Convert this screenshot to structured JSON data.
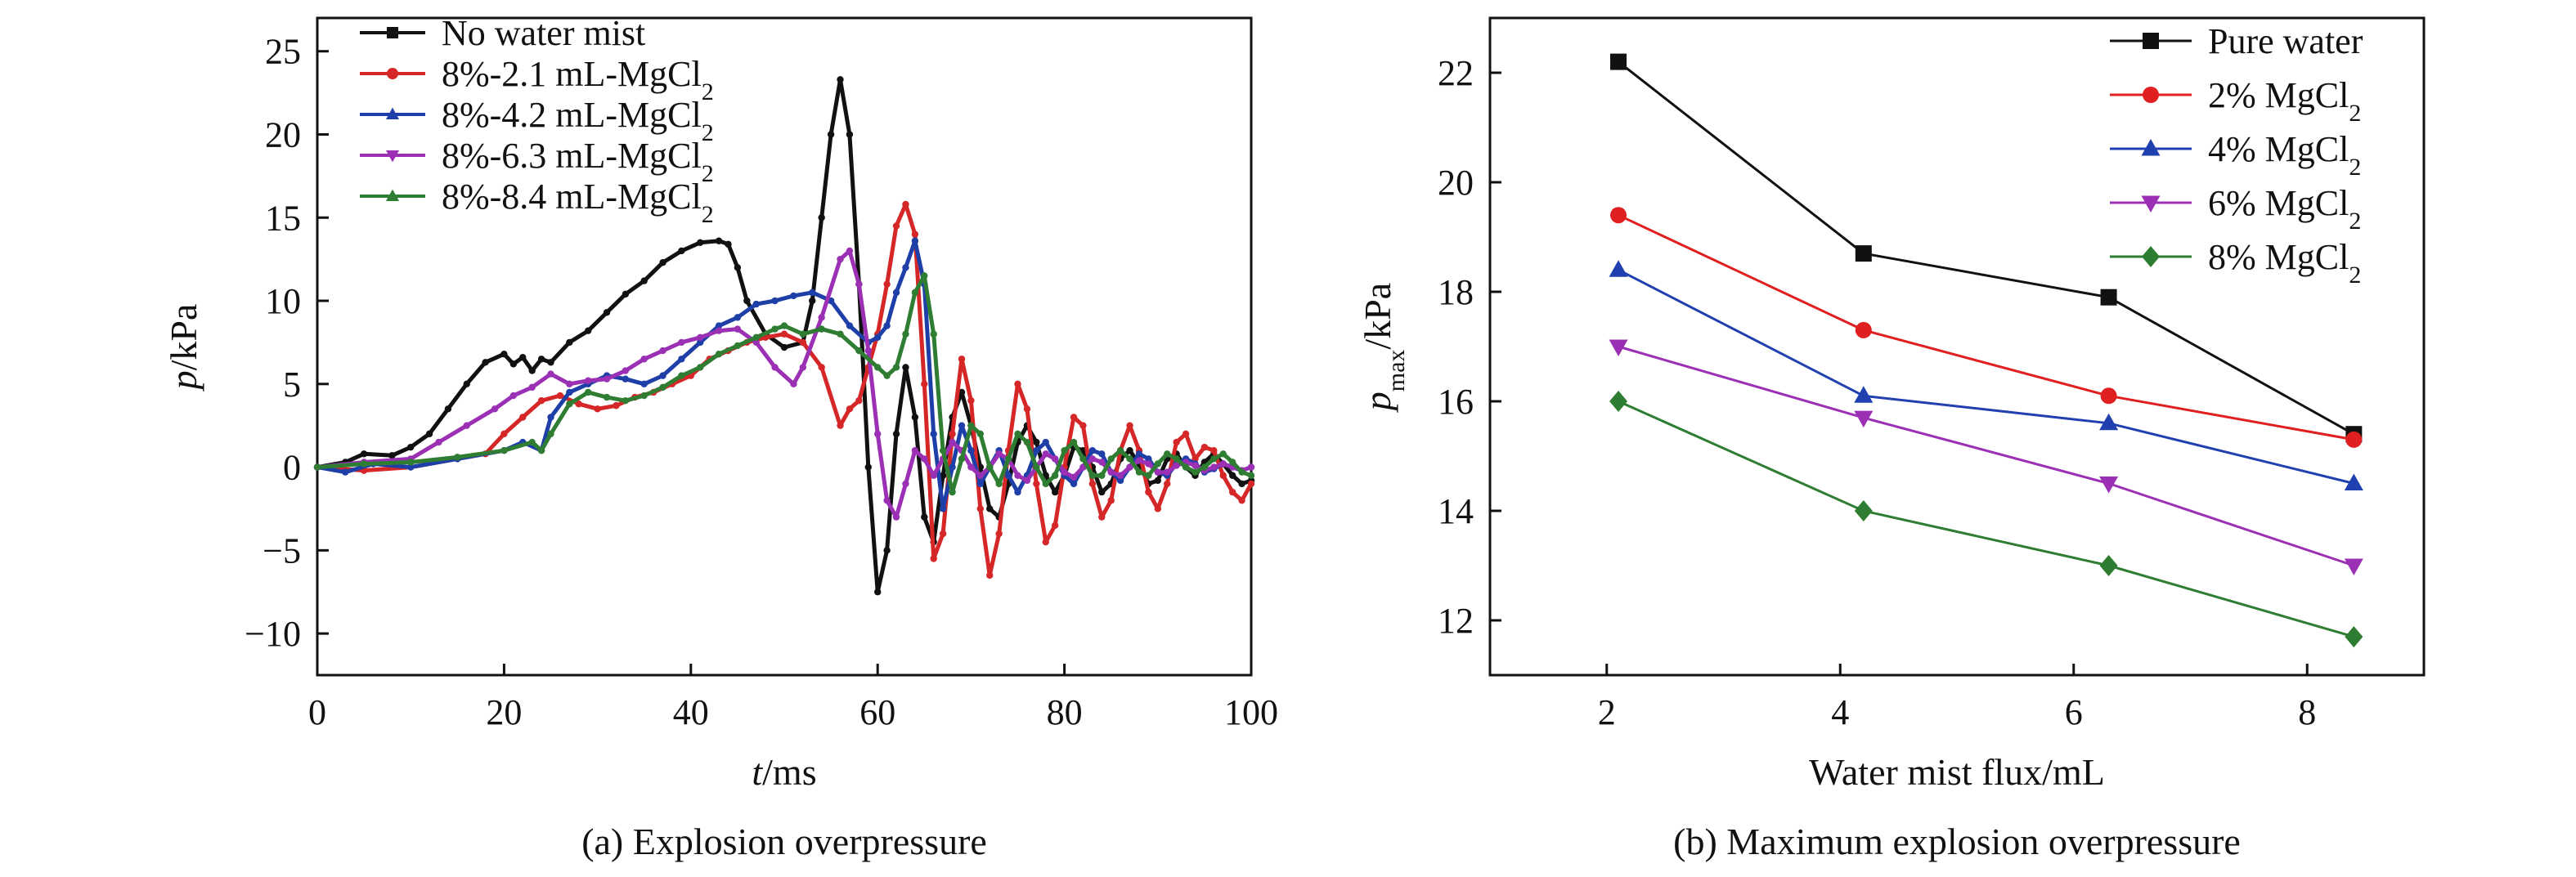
{
  "chart_data": [
    {
      "type": "line",
      "caption": "(a) Explosion overpressure",
      "xlabel_italic": "t",
      "xlabel_rest": "/ms",
      "ylabel_italic": "p",
      "ylabel_rest": "/kPa",
      "xlim": [
        0,
        100
      ],
      "ylim": [
        -12.5,
        27
      ],
      "xticks": [
        0,
        20,
        40,
        60,
        80,
        100
      ],
      "yticks": [
        -10,
        -5,
        0,
        5,
        10,
        15,
        20,
        25
      ],
      "legend_position": "top-left",
      "series": [
        {
          "name": "No water mist",
          "name_sub": "",
          "color": "#111111",
          "marker": "square",
          "x": [
            0,
            3,
            5,
            8,
            10,
            12,
            14,
            16,
            18,
            20,
            21,
            22,
            23,
            24,
            25,
            27,
            29,
            31,
            33,
            35,
            37,
            39,
            41,
            43,
            44,
            45,
            46,
            48,
            50,
            52,
            53,
            54,
            55,
            56,
            57,
            58,
            59,
            60,
            61,
            62,
            63,
            64,
            65,
            66,
            67,
            68,
            69,
            70,
            71,
            72,
            73,
            74,
            75,
            76,
            77,
            78,
            79,
            80,
            81,
            82,
            83,
            84,
            85,
            86,
            87,
            88,
            89,
            90,
            91,
            92,
            93,
            94,
            95,
            96,
            97,
            98,
            99,
            100
          ],
          "y": [
            0,
            0.3,
            0.8,
            0.7,
            1.2,
            2.0,
            3.5,
            5.0,
            6.3,
            6.8,
            6.2,
            6.6,
            5.8,
            6.5,
            6.3,
            7.5,
            8.2,
            9.3,
            10.4,
            11.2,
            12.3,
            13.0,
            13.5,
            13.6,
            13.4,
            12.0,
            10.0,
            8.0,
            7.2,
            7.5,
            10.0,
            15.0,
            20.0,
            23.3,
            20.0,
            11.0,
            0.0,
            -7.5,
            -5.0,
            2.0,
            6.0,
            3.0,
            -3.0,
            -4.5,
            -0.5,
            3.0,
            4.5,
            2.5,
            0.0,
            -2.5,
            -3.0,
            -1.0,
            1.5,
            2.5,
            1.5,
            -0.5,
            -1.5,
            -0.5,
            1.2,
            1.0,
            0.0,
            -1.5,
            -1.0,
            0.5,
            1.0,
            0.2,
            -1.0,
            -0.8,
            0.5,
            0.8,
            0.0,
            -0.5,
            0.3,
            0.8,
            0.2,
            -0.5,
            -1.0,
            -0.8
          ]
        },
        {
          "name": "8%-2.1 mL-MgCl",
          "name_sub": "2",
          "color": "#d62728",
          "marker": "circle",
          "x": [
            0,
            5,
            10,
            15,
            18,
            20,
            22,
            24,
            26,
            28,
            30,
            32,
            34,
            36,
            38,
            40,
            42,
            44,
            46,
            48,
            50,
            52,
            54,
            56,
            57,
            58,
            59,
            60,
            61,
            62,
            63,
            64,
            65,
            66,
            67,
            68,
            69,
            70,
            71,
            72,
            73,
            74,
            75,
            76,
            77,
            78,
            79,
            80,
            81,
            82,
            83,
            84,
            85,
            86,
            87,
            88,
            89,
            90,
            91,
            92,
            93,
            94,
            95,
            96,
            97,
            98,
            99,
            100
          ],
          "y": [
            0,
            -0.2,
            0,
            0.5,
            0.8,
            2.0,
            3.0,
            4.0,
            4.3,
            3.8,
            3.5,
            3.7,
            4.2,
            4.5,
            5.0,
            5.5,
            6.5,
            7.0,
            7.5,
            7.8,
            8.0,
            7.5,
            6.0,
            2.5,
            3.5,
            4.0,
            6.0,
            8.0,
            11.0,
            14.5,
            15.8,
            14.0,
            5.0,
            -5.5,
            -4.0,
            2.0,
            6.5,
            4.0,
            -2.5,
            -6.5,
            -4.0,
            1.0,
            5.0,
            3.5,
            -1.0,
            -4.5,
            -3.5,
            0.0,
            3.0,
            2.5,
            -1.0,
            -3.0,
            -2.0,
            1.0,
            2.5,
            1.0,
            -1.5,
            -2.5,
            -1.0,
            1.5,
            2.0,
            0.5,
            1.2,
            1.0,
            -0.5,
            -1.5,
            -2.0,
            -1.0
          ]
        },
        {
          "name": "8%-4.2 mL-MgCl",
          "name_sub": "2",
          "color": "#1f3fa8",
          "marker": "triangle",
          "x": [
            0,
            3,
            6,
            10,
            15,
            20,
            22,
            24,
            25,
            27,
            29,
            31,
            33,
            35,
            37,
            39,
            41,
            43,
            45,
            47,
            49,
            51,
            53,
            55,
            57,
            59,
            60,
            61,
            62,
            63,
            64,
            65,
            66,
            67,
            68,
            69,
            70,
            71,
            72,
            73,
            74,
            75,
            76,
            77,
            78,
            79,
            80,
            81,
            82,
            83,
            84,
            85,
            86,
            87,
            88,
            89,
            90,
            91,
            92,
            93,
            94,
            95,
            96,
            97,
            98,
            99,
            100
          ],
          "y": [
            0,
            -0.3,
            0.2,
            0.0,
            0.5,
            1.0,
            1.5,
            1.0,
            3.0,
            4.5,
            5.0,
            5.5,
            5.3,
            5.0,
            5.5,
            6.5,
            7.5,
            8.5,
            9.0,
            9.8,
            10.0,
            10.3,
            10.5,
            10.0,
            8.5,
            7.5,
            7.8,
            8.5,
            10.5,
            12.0,
            13.6,
            11.0,
            2.0,
            -2.5,
            0.0,
            2.5,
            1.0,
            -1.0,
            0.0,
            1.0,
            -0.5,
            -1.5,
            -0.5,
            1.0,
            1.5,
            0.5,
            -0.5,
            -1.0,
            0.0,
            1.0,
            0.8,
            -0.3,
            -0.8,
            0.0,
            0.8,
            0.5,
            -0.3,
            -0.5,
            0.2,
            0.5,
            0.2,
            -0.3,
            -0.1,
            0.2,
            0.0,
            -0.2,
            0.0
          ]
        },
        {
          "name": "8%-6.3 mL-MgCl",
          "name_sub": "2",
          "color": "#9b30b5",
          "marker": "triangle-down",
          "x": [
            0,
            5,
            10,
            13,
            16,
            19,
            21,
            23,
            25,
            27,
            29,
            31,
            33,
            35,
            37,
            39,
            41,
            43,
            45,
            47,
            49,
            51,
            52,
            54,
            56,
            57,
            58,
            59,
            60,
            61,
            62,
            63,
            64,
            65,
            66,
            67,
            68,
            69,
            70,
            71,
            72,
            73,
            74,
            75,
            76,
            77,
            78,
            79,
            80,
            81,
            82,
            83,
            84,
            85,
            86,
            87,
            88,
            89,
            90,
            91,
            92,
            93,
            94,
            95,
            96,
            97,
            98,
            99,
            100
          ],
          "y": [
            0,
            0.3,
            0.5,
            1.5,
            2.5,
            3.5,
            4.3,
            4.8,
            5.6,
            5.0,
            5.2,
            5.3,
            5.8,
            6.5,
            7.0,
            7.5,
            7.8,
            8.2,
            8.3,
            7.5,
            6.0,
            5.0,
            6.0,
            9.0,
            12.5,
            13.0,
            11.0,
            7.0,
            2.0,
            -2.0,
            -3.0,
            -1.0,
            1.0,
            0.5,
            -0.5,
            0.5,
            1.5,
            1.0,
            0.0,
            -0.5,
            0.0,
            0.8,
            0.5,
            -0.5,
            -0.8,
            0.0,
            0.8,
            0.5,
            -0.3,
            -0.6,
            0.0,
            0.5,
            0.3,
            -0.3,
            -0.5,
            0.0,
            0.4,
            0.2,
            -0.3,
            -0.3,
            0.1,
            0.3,
            0.1,
            -0.2,
            0.0,
            0.2,
            0.0,
            -0.2,
            0.0
          ]
        },
        {
          "name": "8%-8.4 mL-MgCl",
          "name_sub": "2",
          "color": "#2e7d32",
          "marker": "triangle",
          "x": [
            0,
            5,
            10,
            15,
            20,
            23,
            24,
            25,
            27,
            29,
            31,
            33,
            35,
            37,
            39,
            41,
            43,
            45,
            47,
            49,
            50,
            52,
            54,
            56,
            58,
            60,
            61,
            62,
            63,
            64,
            65,
            66,
            67,
            68,
            69,
            70,
            71,
            72,
            73,
            74,
            75,
            76,
            77,
            78,
            79,
            80,
            81,
            82,
            83,
            84,
            85,
            86,
            87,
            88,
            89,
            90,
            91,
            92,
            93,
            94,
            95,
            96,
            97,
            98,
            99,
            100
          ],
          "y": [
            0,
            0.2,
            0.3,
            0.6,
            1.0,
            1.5,
            1.0,
            2.0,
            3.8,
            4.5,
            4.2,
            4.0,
            4.3,
            4.8,
            5.5,
            6.0,
            6.8,
            7.3,
            7.8,
            8.3,
            8.5,
            8.0,
            8.3,
            8.0,
            7.0,
            6.0,
            5.5,
            6.0,
            8.0,
            10.5,
            11.5,
            8.0,
            1.0,
            -1.5,
            0.5,
            2.5,
            2.0,
            0.0,
            -1.0,
            0.5,
            2.0,
            1.5,
            0.0,
            -1.0,
            -0.5,
            1.0,
            1.5,
            0.5,
            -0.5,
            -0.5,
            0.5,
            1.0,
            0.5,
            -0.3,
            -0.5,
            0.2,
            0.8,
            0.5,
            0.0,
            -0.3,
            0.0,
            0.5,
            0.8,
            0.3,
            -0.3,
            -0.5
          ]
        }
      ]
    },
    {
      "type": "line",
      "caption": "(b) Maximum explosion overpressure",
      "xlabel": "Water mist flux/mL",
      "ylabel_main": "p",
      "ylabel_sub": "max",
      "ylabel_rest": "/kPa",
      "xlim": [
        1,
        9
      ],
      "ylim": [
        11,
        23
      ],
      "xticks": [
        2,
        4,
        6,
        8
      ],
      "yticks": [
        12,
        14,
        16,
        18,
        20,
        22
      ],
      "legend_position": "top-right",
      "x": [
        2.1,
        4.2,
        6.3,
        8.4
      ],
      "series": [
        {
          "name": "Pure water",
          "name_sub": "",
          "color": "#111111",
          "marker": "square",
          "values": [
            22.2,
            18.7,
            17.9,
            15.4
          ]
        },
        {
          "name": "2% MgCl",
          "name_sub": "2",
          "color": "#e02020",
          "marker": "circle",
          "values": [
            19.4,
            17.3,
            16.1,
            15.3
          ]
        },
        {
          "name": "4% MgCl",
          "name_sub": "2",
          "color": "#2040b0",
          "marker": "triangle",
          "values": [
            18.4,
            16.1,
            15.6,
            14.5
          ]
        },
        {
          "name": "6% MgCl",
          "name_sub": "2",
          "color": "#9b30b5",
          "marker": "triangle-down",
          "values": [
            17.0,
            15.7,
            14.5,
            13.0
          ]
        },
        {
          "name": "8% MgCl",
          "name_sub": "2",
          "color": "#2e7d32",
          "marker": "diamond",
          "values": [
            16.0,
            14.0,
            13.0,
            11.7
          ]
        }
      ]
    }
  ]
}
